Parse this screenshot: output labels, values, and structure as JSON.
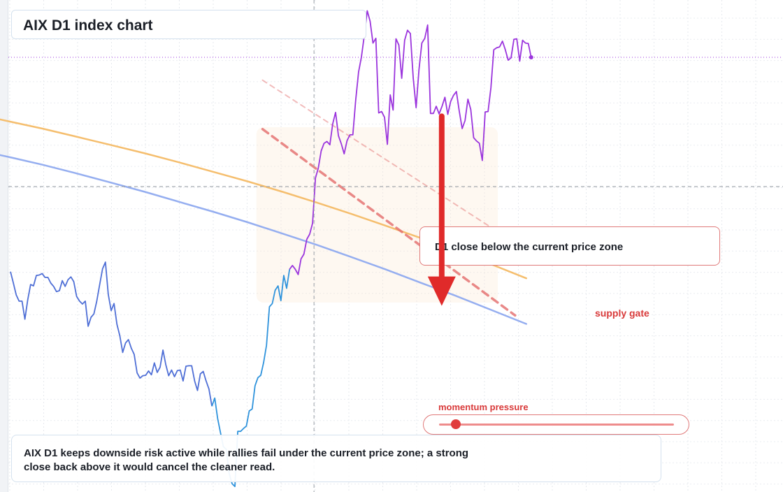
{
  "chart_data": {
    "type": "line",
    "title": "AIX D1 index chart",
    "xlabel": "",
    "ylabel": "",
    "grid": true,
    "y_domain": [
      0,
      100
    ],
    "current_price_level": 62.5,
    "colors": {
      "downtrend": "#4f6fd6",
      "lowline": "#2f93dc",
      "uptrend": "#9b35dd",
      "resistance_orange": "#f5be6e",
      "resistance_blue": "#95aef0",
      "channel": "#e36b6b",
      "signal": "#e02a2a"
    },
    "series": [
      {
        "color_key": "downtrend",
        "points": [
          [
            0,
            44.6
          ],
          [
            1,
            42.2
          ],
          [
            2,
            39.7
          ],
          [
            3,
            38.4
          ],
          [
            4,
            38.4
          ],
          [
            5,
            34.6
          ],
          [
            6,
            38.7
          ],
          [
            7,
            41.9
          ],
          [
            8,
            41.6
          ],
          [
            9,
            43.8
          ],
          [
            10,
            43.9
          ],
          [
            11,
            44.2
          ],
          [
            12,
            43.4
          ],
          [
            13,
            43.4
          ],
          [
            14,
            42.2
          ],
          [
            15,
            41.5
          ],
          [
            16,
            40.4
          ],
          [
            17,
            40.6
          ],
          [
            18,
            42.7
          ],
          [
            19,
            41.5
          ],
          [
            20,
            42.9
          ],
          [
            21,
            43.5
          ],
          [
            22,
            42.5
          ],
          [
            23,
            39.4
          ],
          [
            24,
            38.4
          ],
          [
            25,
            37.8
          ],
          [
            26,
            38.4
          ],
          [
            27,
            33.1
          ],
          [
            28,
            35.0
          ],
          [
            29,
            35.7
          ],
          [
            30,
            38.4
          ],
          [
            31,
            41.9
          ],
          [
            32,
            45.2
          ],
          [
            33,
            46.6
          ],
          [
            34,
            39.8
          ],
          [
            35,
            36.4
          ],
          [
            36,
            37.9
          ],
          [
            37,
            33.5
          ],
          [
            38,
            31.1
          ],
          [
            39,
            27.6
          ],
          [
            40,
            29.6
          ],
          [
            41,
            30.3
          ],
          [
            42,
            28.5
          ],
          [
            43,
            27.2
          ],
          [
            44,
            23.3
          ],
          [
            45,
            22.2
          ],
          [
            46,
            22.7
          ],
          [
            47,
            22.8
          ],
          [
            48,
            23.7
          ],
          [
            49,
            22.9
          ],
          [
            50,
            25.4
          ],
          [
            51,
            23.4
          ],
          [
            52,
            24.5
          ],
          [
            53,
            28.1
          ],
          [
            54,
            25.0
          ],
          [
            55,
            22.7
          ],
          [
            56,
            23.9
          ],
          [
            57,
            22.5
          ],
          [
            58,
            23.8
          ],
          [
            59,
            23.9
          ],
          [
            60,
            21.6
          ],
          [
            61,
            24.7
          ],
          [
            62,
            24.8
          ],
          [
            63,
            24.8
          ],
          [
            64,
            21.6
          ],
          [
            65,
            19.6
          ],
          [
            66,
            23.1
          ],
          [
            67,
            23.6
          ],
          [
            68,
            21.6
          ],
          [
            69,
            19.9
          ],
          [
            70,
            16.3
          ]
        ]
      },
      {
        "color_key": "lowline",
        "points": [
          [
            70,
            16.3
          ],
          [
            71,
            18.0
          ],
          [
            72,
            13.7
          ],
          [
            73,
            10.7
          ],
          [
            74,
            7.8
          ],
          [
            75,
            7.2
          ],
          [
            76,
            2.2
          ],
          [
            77,
            0.0
          ],
          [
            78,
            -0.6
          ],
          [
            79,
            11.0
          ],
          [
            80,
            11.0
          ],
          [
            81,
            11.6
          ],
          [
            82,
            12.1
          ],
          [
            83,
            15.3
          ],
          [
            84,
            15.7
          ],
          [
            85,
            20.6
          ],
          [
            86,
            22.3
          ],
          [
            87,
            22.8
          ],
          [
            88,
            25.5
          ],
          [
            89,
            29.1
          ],
          [
            90,
            37.2
          ],
          [
            91,
            37.9
          ],
          [
            92,
            40.7
          ],
          [
            93,
            41.6
          ],
          [
            94,
            38.5
          ],
          [
            95,
            43.8
          ],
          [
            96,
            41.1
          ],
          [
            97,
            45.1
          ]
        ]
      },
      {
        "color_key": "uptrend",
        "points": [
          [
            97,
            45.1
          ],
          [
            98,
            45.9
          ],
          [
            99,
            45.1
          ],
          [
            100,
            44.0
          ],
          [
            101,
            47.3
          ],
          [
            102,
            48.3
          ],
          [
            103,
            51.4
          ],
          [
            104,
            52.5
          ],
          [
            105,
            54.8
          ],
          [
            106,
            64.3
          ],
          [
            107,
            66.4
          ],
          [
            108,
            70.0
          ],
          [
            109,
            71.6
          ],
          [
            110,
            72.0
          ],
          [
            111,
            71.3
          ],
          [
            112,
            75.7
          ],
          [
            113,
            78.1
          ],
          [
            114,
            73.2
          ],
          [
            115,
            71.5
          ],
          [
            116,
            69.4
          ],
          [
            117,
            72.2
          ],
          [
            118,
            73.4
          ],
          [
            119,
            73.4
          ],
          [
            120,
            80.7
          ],
          [
            121,
            86.6
          ],
          [
            122,
            89.8
          ],
          [
            123,
            94.3
          ],
          [
            124,
            99.5
          ],
          [
            125,
            97.3
          ],
          [
            126,
            92.7
          ],
          [
            127,
            93.7
          ],
          [
            128,
            78.0
          ],
          [
            129,
            78.3
          ],
          [
            130,
            77.1
          ],
          [
            131,
            71.4
          ],
          [
            132,
            81.8
          ],
          [
            133,
            78.6
          ],
          [
            134,
            93.6
          ],
          [
            135,
            92.3
          ],
          [
            136,
            85.3
          ],
          [
            137,
            93.3
          ],
          [
            138,
            95.4
          ],
          [
            139,
            94.7
          ],
          [
            140,
            85.3
          ],
          [
            141,
            79.1
          ],
          [
            142,
            87.1
          ],
          [
            143,
            92.7
          ],
          [
            144,
            93.7
          ],
          [
            145,
            96.5
          ],
          [
            146,
            77.9
          ],
          [
            147,
            77.9
          ],
          [
            148,
            79.4
          ],
          [
            149,
            77.8
          ],
          [
            150,
            79.4
          ],
          [
            151,
            81.3
          ],
          [
            152,
            77.7
          ],
          [
            153,
            80.4
          ],
          [
            154,
            81.7
          ],
          [
            155,
            82.5
          ],
          [
            156,
            78.4
          ],
          [
            157,
            74.7
          ],
          [
            158,
            76.4
          ],
          [
            159,
            80.9
          ],
          [
            160,
            78.7
          ],
          [
            161,
            72.8
          ],
          [
            162,
            72.1
          ],
          [
            163,
            71.6
          ],
          [
            164,
            68.0
          ],
          [
            165,
            78.2
          ],
          [
            166,
            78.3
          ],
          [
            167,
            83.3
          ],
          [
            168,
            91.3
          ],
          [
            169,
            91.7
          ],
          [
            170,
            91.9
          ],
          [
            171,
            93.1
          ],
          [
            172,
            91.3
          ],
          [
            173,
            89.1
          ],
          [
            174,
            89.6
          ],
          [
            175,
            93.5
          ],
          [
            176,
            93.6
          ],
          [
            177,
            88.9
          ],
          [
            178,
            93.3
          ],
          [
            179,
            92.7
          ],
          [
            180,
            92.6
          ],
          [
            181,
            89.7
          ]
        ]
      }
    ],
    "lines": [
      {
        "color_key": "resistance_orange",
        "dash": false,
        "width": 2.5,
        "points": [
          [
            -16.8,
            78.3
          ],
          [
            -8.6,
            77.3
          ],
          [
            0.4,
            76.1
          ],
          [
            11.1,
            74.7
          ],
          [
            22.2,
            73.1
          ],
          [
            34.6,
            71.3
          ],
          [
            46.7,
            69.5
          ],
          [
            58.6,
            67.6
          ],
          [
            70.5,
            65.6
          ],
          [
            82.4,
            63.6
          ],
          [
            94.6,
            61.4
          ],
          [
            106.6,
            59.1
          ],
          [
            118.3,
            56.8
          ],
          [
            130.3,
            54.3
          ],
          [
            142.5,
            51.7
          ],
          [
            154.4,
            49.1
          ],
          [
            166.9,
            46.2
          ],
          [
            179.3,
            43.2
          ]
        ]
      },
      {
        "color_key": "resistance_blue",
        "dash": false,
        "width": 2.5,
        "points": [
          [
            -16.8,
            70.6
          ],
          [
            -8.6,
            69.8
          ],
          [
            0.4,
            68.6
          ],
          [
            11.1,
            67.1
          ],
          [
            22.2,
            65.4
          ],
          [
            34.6,
            63.4
          ],
          [
            46.7,
            61.4
          ],
          [
            58.6,
            59.3
          ],
          [
            70.5,
            57.2
          ],
          [
            82.4,
            55.0
          ],
          [
            94.6,
            52.6
          ],
          [
            106.6,
            50.2
          ],
          [
            118.3,
            47.7
          ],
          [
            130.3,
            45.1
          ],
          [
            142.5,
            42.3
          ],
          [
            154.4,
            39.6
          ],
          [
            166.9,
            36.6
          ],
          [
            179.3,
            33.6
          ]
        ]
      },
      {
        "color_key": "channel",
        "dash": true,
        "width": 3.5,
        "opacity": 0.8,
        "points": [
          [
            87.6,
            74.6
          ],
          [
            175.4,
            35.4
          ]
        ]
      },
      {
        "color_key": "channel",
        "dash": true,
        "width": 2.0,
        "opacity": 0.45,
        "points": [
          [
            87.6,
            84.9
          ],
          [
            174.3,
            51.1
          ]
        ]
      }
    ],
    "zone": {
      "x": [
        85.5,
        169.4
      ],
      "y": [
        38.1,
        75.0
      ]
    },
    "signal": {
      "x": 149.9,
      "y_from": 77.3,
      "y_to": 37.4,
      "label": "supply gate"
    },
    "cursor": {
      "x": 105.5
    },
    "annotation": "D1 close below the current price zone",
    "momentum": {
      "label": "momentum pressure",
      "value": 0.07
    },
    "summary": "AIX D1 keeps downside risk active while rallies fail under the current price zone; a strong close back above it would cancel the cleaner read."
  }
}
